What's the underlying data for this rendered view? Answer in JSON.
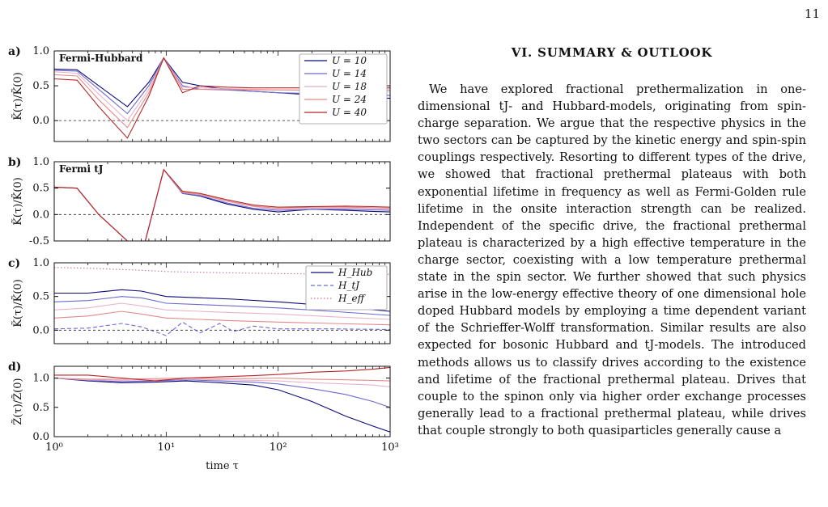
{
  "page": {
    "number": "11"
  },
  "summary": {
    "heading": "VI. SUMMARY & OUTLOOK",
    "body": "We have explored fractional prethermalization in one-dimensional tJ- and Hubbard-models, originating from spin-charge separation. We argue that the respective physics in the two sectors can be captured by the kinetic energy and spin-spin couplings respectively. Resorting to different types of the drive, we showed that fractional prethermal plateaus with both exponential lifetime in frequency as well as Fermi-Golden rule lifetime in the onsite interaction strength can be realized. Independent of the specific drive, the fractional prethermal plateau is characterized by a high effective temperature in the charge sector, coexisting with a low temperature prethermal state in the spin sector. We further showed that such physics arise in the low-energy effective theory of one dimensional hole doped Hubbard models by employing a time dependent variant of the Schrieffer-Wolff transformation. Similar results are also expected for bosonic Hubbard and tJ-models. The introduced methods allows us to classify drives according to the existence and lifetime of the fractional prethermal plateau. Drives that couple to the spinon only via higher order exchange processes generally lead to a fractional prethermal plateau, while drives that couple strongly to both quasiparticles generally cause a"
  },
  "figure": {
    "xlabel": "time τ",
    "x_ticks": [
      {
        "value": 1,
        "label": "10⁰"
      },
      {
        "value": 10,
        "label": "10¹"
      },
      {
        "value": 100,
        "label": "10²"
      },
      {
        "value": 1000,
        "label": "10³"
      }
    ],
    "series_colors": [
      "#0b0b7a",
      "#6a6ad0",
      "#e9b3c6",
      "#e48a8a",
      "#b42424"
    ],
    "legend_line_colors": [
      "#0b0b7a",
      "#6a6ad0",
      "#dcb0c8",
      "#e48a8a",
      "#b42424"
    ],
    "legend_line_styles": [
      "solid",
      "dashed",
      "dotted"
    ]
  },
  "chart_data": [
    {
      "type": "line",
      "panel": "a)",
      "title": "Fermi-Hubbard",
      "ylabel": "K̃(τ)/K̃(0)",
      "xscale": "log",
      "xlim": [
        1,
        1000
      ],
      "ylim": [
        -0.3,
        1.0
      ],
      "yticks": [
        "0.0",
        "0.5",
        "1.0"
      ],
      "legend_position": "top-right",
      "legend": [
        "U = 10",
        "U = 14",
        "U = 18",
        "U = 24",
        "U = 40"
      ],
      "reference_line": 0.0,
      "series": [
        {
          "name": "U = 10",
          "x": [
            1,
            1.6,
            2.5,
            4.5,
            7.0,
            9.5,
            14,
            20,
            35,
            60,
            100,
            200,
            400,
            700,
            1000
          ],
          "y": [
            0.74,
            0.73,
            0.5,
            0.2,
            0.55,
            0.9,
            0.55,
            0.5,
            0.45,
            0.42,
            0.4,
            0.37,
            0.35,
            0.33,
            0.32
          ]
        },
        {
          "name": "U = 14",
          "x": [
            1,
            1.6,
            2.5,
            4.5,
            7.0,
            9.5,
            14,
            20,
            35,
            60,
            100,
            200,
            400,
            700,
            1000
          ],
          "y": [
            0.72,
            0.71,
            0.45,
            0.1,
            0.5,
            0.9,
            0.5,
            0.45,
            0.44,
            0.42,
            0.4,
            0.39,
            0.38,
            0.37,
            0.36
          ]
        },
        {
          "name": "U = 18",
          "x": [
            1,
            1.6,
            2.5,
            4.5,
            7.0,
            9.5,
            14,
            20,
            35,
            60,
            100,
            200,
            400,
            700,
            1000
          ],
          "y": [
            0.7,
            0.68,
            0.38,
            0.0,
            0.45,
            0.9,
            0.48,
            0.47,
            0.46,
            0.45,
            0.44,
            0.43,
            0.43,
            0.42,
            0.42
          ]
        },
        {
          "name": "U = 24",
          "x": [
            1,
            1.6,
            2.5,
            4.5,
            7.0,
            9.5,
            14,
            20,
            35,
            60,
            100,
            200,
            400,
            700,
            1000
          ],
          "y": [
            0.66,
            0.64,
            0.3,
            -0.1,
            0.4,
            0.9,
            0.45,
            0.45,
            0.45,
            0.44,
            0.44,
            0.44,
            0.44,
            0.44,
            0.44
          ]
        },
        {
          "name": "U = 40",
          "x": [
            1,
            1.6,
            2.5,
            4.5,
            7.0,
            9.5,
            14,
            20,
            35,
            60,
            100,
            200,
            400,
            700,
            1000
          ],
          "y": [
            0.6,
            0.58,
            0.2,
            -0.25,
            0.35,
            0.9,
            0.4,
            0.5,
            0.48,
            0.47,
            0.47,
            0.47,
            0.47,
            0.47,
            0.47
          ]
        }
      ]
    },
    {
      "type": "line",
      "panel": "b)",
      "title": "Fermi tJ",
      "ylabel": "K̃(τ)/K̃(0)",
      "xscale": "log",
      "xlim": [
        1,
        1000
      ],
      "ylim": [
        -0.5,
        1.0
      ],
      "yticks": [
        "-0.5",
        "0.0",
        "0.5",
        "1.0"
      ],
      "reference_line": 0.0,
      "series": [
        {
          "name": "U = 10",
          "x": [
            1,
            1.6,
            2.5,
            4.5,
            6.5,
            9.5,
            14,
            20,
            35,
            60,
            100,
            200,
            400,
            700,
            1000
          ],
          "y": [
            0.52,
            0.5,
            0.0,
            -0.5,
            -0.5,
            0.85,
            0.4,
            0.35,
            0.2,
            0.1,
            0.05,
            0.1,
            0.08,
            0.06,
            0.05
          ]
        },
        {
          "name": "U = 14",
          "x": [
            1,
            1.6,
            2.5,
            4.5,
            6.5,
            9.5,
            14,
            20,
            35,
            60,
            100,
            200,
            400,
            700,
            1000
          ],
          "y": [
            0.52,
            0.5,
            0.0,
            -0.5,
            -0.5,
            0.85,
            0.4,
            0.36,
            0.22,
            0.12,
            0.08,
            0.1,
            0.1,
            0.09,
            0.08
          ]
        },
        {
          "name": "U = 18",
          "x": [
            1,
            1.6,
            2.5,
            4.5,
            6.5,
            9.5,
            14,
            20,
            35,
            60,
            100,
            200,
            400,
            700,
            1000
          ],
          "y": [
            0.52,
            0.5,
            0.0,
            -0.5,
            -0.5,
            0.85,
            0.42,
            0.38,
            0.25,
            0.15,
            0.1,
            0.12,
            0.12,
            0.11,
            0.1
          ]
        },
        {
          "name": "U = 24",
          "x": [
            1,
            1.6,
            2.5,
            4.5,
            6.5,
            9.5,
            14,
            20,
            35,
            60,
            100,
            200,
            400,
            700,
            1000
          ],
          "y": [
            0.52,
            0.5,
            0.0,
            -0.5,
            -0.5,
            0.85,
            0.42,
            0.38,
            0.26,
            0.16,
            0.12,
            0.14,
            0.14,
            0.13,
            0.12
          ]
        },
        {
          "name": "U = 40",
          "x": [
            1,
            1.6,
            2.5,
            4.5,
            6.5,
            9.5,
            14,
            20,
            35,
            60,
            100,
            200,
            400,
            700,
            1000
          ],
          "y": [
            0.52,
            0.5,
            0.0,
            -0.5,
            -0.5,
            0.85,
            0.44,
            0.4,
            0.28,
            0.18,
            0.14,
            0.15,
            0.16,
            0.15,
            0.14
          ]
        }
      ]
    },
    {
      "type": "line",
      "panel": "c)",
      "ylabel": "K̃(τ)/K̃(0)",
      "xscale": "log",
      "xlim": [
        1,
        1000
      ],
      "ylim": [
        -0.2,
        1.0
      ],
      "yticks": [
        "0.0",
        "0.5",
        "1.0"
      ],
      "legend_position": "top-right",
      "legend": [
        "H_Hub",
        "H_tJ",
        "H_eff"
      ],
      "reference_line": 0.0,
      "series": [
        {
          "name": "H_Hub",
          "style": "solid",
          "x": [
            1,
            2,
            4,
            6,
            10,
            20,
            40,
            100,
            300,
            1000
          ],
          "y": [
            0.55,
            0.55,
            0.6,
            0.58,
            0.5,
            0.48,
            0.46,
            0.42,
            0.36,
            0.28
          ]
        },
        {
          "name": "H_Hub",
          "style": "solid",
          "x": [
            1,
            2,
            4,
            6,
            10,
            20,
            40,
            100,
            300,
            1000
          ],
          "y": [
            0.42,
            0.44,
            0.5,
            0.48,
            0.4,
            0.38,
            0.36,
            0.33,
            0.28,
            0.22
          ]
        },
        {
          "name": "H_Hub",
          "style": "solid",
          "x": [
            1,
            2,
            4,
            6,
            10,
            20,
            40,
            100,
            300,
            1000
          ],
          "y": [
            0.3,
            0.33,
            0.4,
            0.36,
            0.3,
            0.28,
            0.26,
            0.24,
            0.2,
            0.16
          ]
        },
        {
          "name": "H_Hub",
          "style": "solid",
          "x": [
            1,
            2,
            4,
            6,
            10,
            20,
            40,
            100,
            300,
            1000
          ],
          "y": [
            0.18,
            0.21,
            0.28,
            0.24,
            0.18,
            0.16,
            0.14,
            0.12,
            0.1,
            0.08
          ]
        },
        {
          "name": "H_tJ",
          "style": "dashed",
          "x": [
            1,
            2,
            4,
            6,
            10,
            14,
            20,
            30,
            40,
            60,
            100,
            300,
            1000
          ],
          "y": [
            0.02,
            0.03,
            0.1,
            0.05,
            -0.08,
            0.12,
            -0.04,
            0.1,
            -0.02,
            0.06,
            0.02,
            0.02,
            0.01
          ]
        },
        {
          "name": "H_eff",
          "style": "dotted",
          "x": [
            1,
            2,
            4,
            6,
            10,
            20,
            40,
            100,
            300,
            1000
          ],
          "y": [
            0.93,
            0.92,
            0.9,
            0.89,
            0.87,
            0.86,
            0.85,
            0.84,
            0.83,
            0.83
          ]
        }
      ]
    },
    {
      "type": "line",
      "panel": "d)",
      "ylabel": "Z̃(τ)/Z̃(0)",
      "xscale": "log",
      "xlim": [
        1,
        1000
      ],
      "ylim": [
        0.0,
        1.2
      ],
      "yticks": [
        "0.0",
        "0.5",
        "1.0"
      ],
      "series": [
        {
          "name": "U = 10",
          "x": [
            1,
            2,
            4,
            8,
            15,
            30,
            60,
            100,
            200,
            400,
            700,
            1000
          ],
          "y": [
            1.0,
            0.95,
            0.92,
            0.93,
            0.95,
            0.92,
            0.88,
            0.8,
            0.6,
            0.35,
            0.18,
            0.08
          ]
        },
        {
          "name": "U = 14",
          "x": [
            1,
            2,
            4,
            8,
            15,
            30,
            60,
            100,
            200,
            400,
            700,
            1000
          ],
          "y": [
            1.0,
            0.96,
            0.94,
            0.95,
            0.97,
            0.95,
            0.93,
            0.9,
            0.82,
            0.72,
            0.6,
            0.5
          ]
        },
        {
          "name": "U = 18",
          "x": [
            1,
            2,
            4,
            8,
            15,
            30,
            60,
            100,
            200,
            400,
            700,
            1000
          ],
          "y": [
            1.0,
            0.97,
            0.96,
            0.97,
            0.98,
            0.97,
            0.96,
            0.95,
            0.92,
            0.9,
            0.88,
            0.85
          ]
        },
        {
          "name": "U = 24",
          "x": [
            1,
            2,
            4,
            8,
            15,
            30,
            60,
            100,
            200,
            400,
            700,
            1000
          ],
          "y": [
            1.0,
            0.98,
            0.98,
            0.99,
            1.0,
            0.99,
            0.99,
            1.0,
            0.98,
            0.97,
            0.96,
            0.95
          ]
        },
        {
          "name": "U = 40",
          "x": [
            1,
            2,
            4,
            8,
            15,
            30,
            60,
            100,
            200,
            400,
            700,
            1000
          ],
          "y": [
            1.05,
            1.05,
            1.0,
            0.95,
            1.0,
            1.02,
            1.04,
            1.06,
            1.1,
            1.12,
            1.15,
            1.18
          ]
        }
      ]
    }
  ]
}
